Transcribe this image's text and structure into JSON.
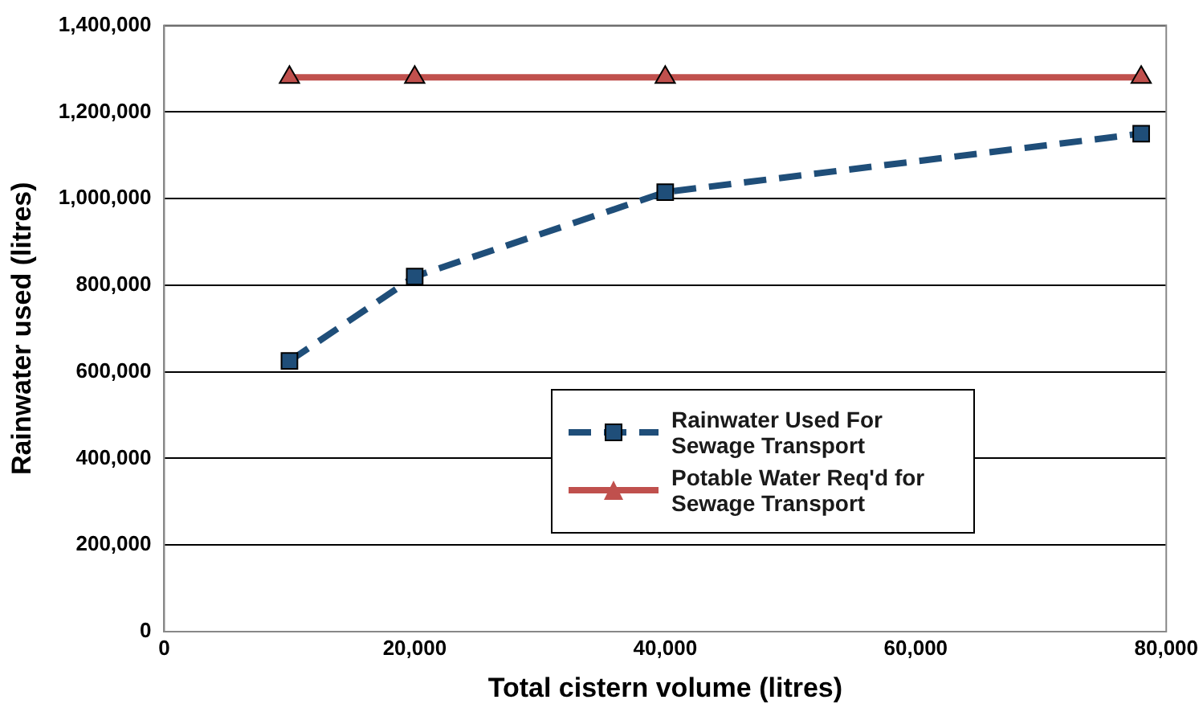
{
  "chart_data": {
    "type": "line",
    "xlabel": "Total cistern volume (litres)",
    "ylabel": "Rainwater used (litres)",
    "xlim": [
      0,
      80000
    ],
    "xticks": [
      {
        "value": 0,
        "label": "0"
      },
      {
        "value": 20000,
        "label": "20,000"
      },
      {
        "value": 40000,
        "label": "40,000"
      },
      {
        "value": 60000,
        "label": "60,000"
      },
      {
        "value": 80000,
        "label": "80,000"
      }
    ],
    "ylim": [
      0,
      1400000
    ],
    "yticks": [
      {
        "value": 0,
        "label": "0"
      },
      {
        "value": 200000,
        "label": "200,000"
      },
      {
        "value": 400000,
        "label": "400,000"
      },
      {
        "value": 600000,
        "label": "600,000"
      },
      {
        "value": 800000,
        "label": "800,000"
      },
      {
        "value": 1000000,
        "label": "1,000,000"
      },
      {
        "value": 1200000,
        "label": "1,200,000"
      },
      {
        "value": 1400000,
        "label": "1,400,000"
      }
    ],
    "grid": "y",
    "legend": "bottom right",
    "series": [
      {
        "name": "Rainwater Used For Sewage Transport",
        "color": "#1f4e79",
        "x": [
          10000,
          20000,
          40000,
          78000
        ],
        "values": [
          625000,
          820000,
          1015000,
          1150000
        ],
        "marker": "square",
        "line_style": "dashed"
      },
      {
        "name": "Potable Water Req'd for Sewage Transport",
        "color": "#c0504d",
        "x": [
          10000,
          20000,
          40000,
          78000
        ],
        "values": [
          1280000,
          1280000,
          1280000,
          1280000
        ],
        "marker": "triangle",
        "line_style": "solid"
      }
    ]
  }
}
